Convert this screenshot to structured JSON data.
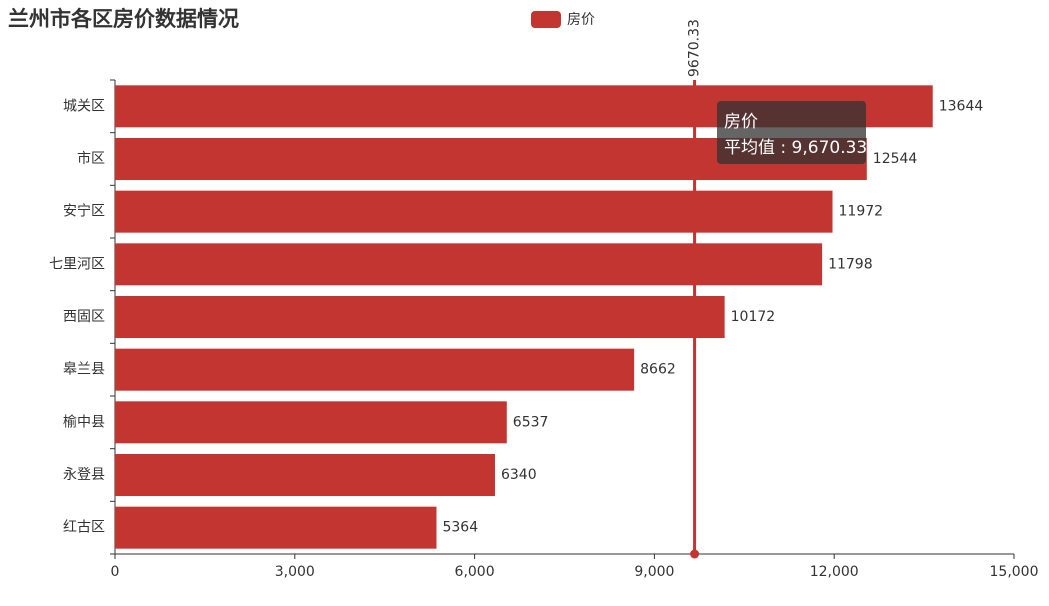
{
  "chart_data": {
    "type": "hbar",
    "title": "兰州市各区房价数据情况",
    "categories": [
      "城关区",
      "市区",
      "安宁区",
      "七里河区",
      "西固区",
      "皋兰县",
      "榆中县",
      "永登县",
      "红古区"
    ],
    "series": [
      {
        "name": "房价",
        "color": "#c23531",
        "values": [
          13644,
          12544,
          11972,
          11798,
          10172,
          8662,
          6537,
          6340,
          5364
        ]
      }
    ],
    "xlim": [
      0,
      15000
    ],
    "xticks": [
      0,
      {
        "value": 3000,
        "label": "3,000"
      },
      {
        "value": 6000,
        "label": "6,000"
      },
      {
        "value": 9000,
        "label": "9,000"
      },
      {
        "value": 12000,
        "label": "12,000"
      },
      {
        "value": 15000,
        "label": "15,000"
      }
    ],
    "mark_line": 9670.33,
    "tooltip": {
      "title": "房价",
      "text": "平均值 : 9,670.33"
    },
    "grid": false
  }
}
